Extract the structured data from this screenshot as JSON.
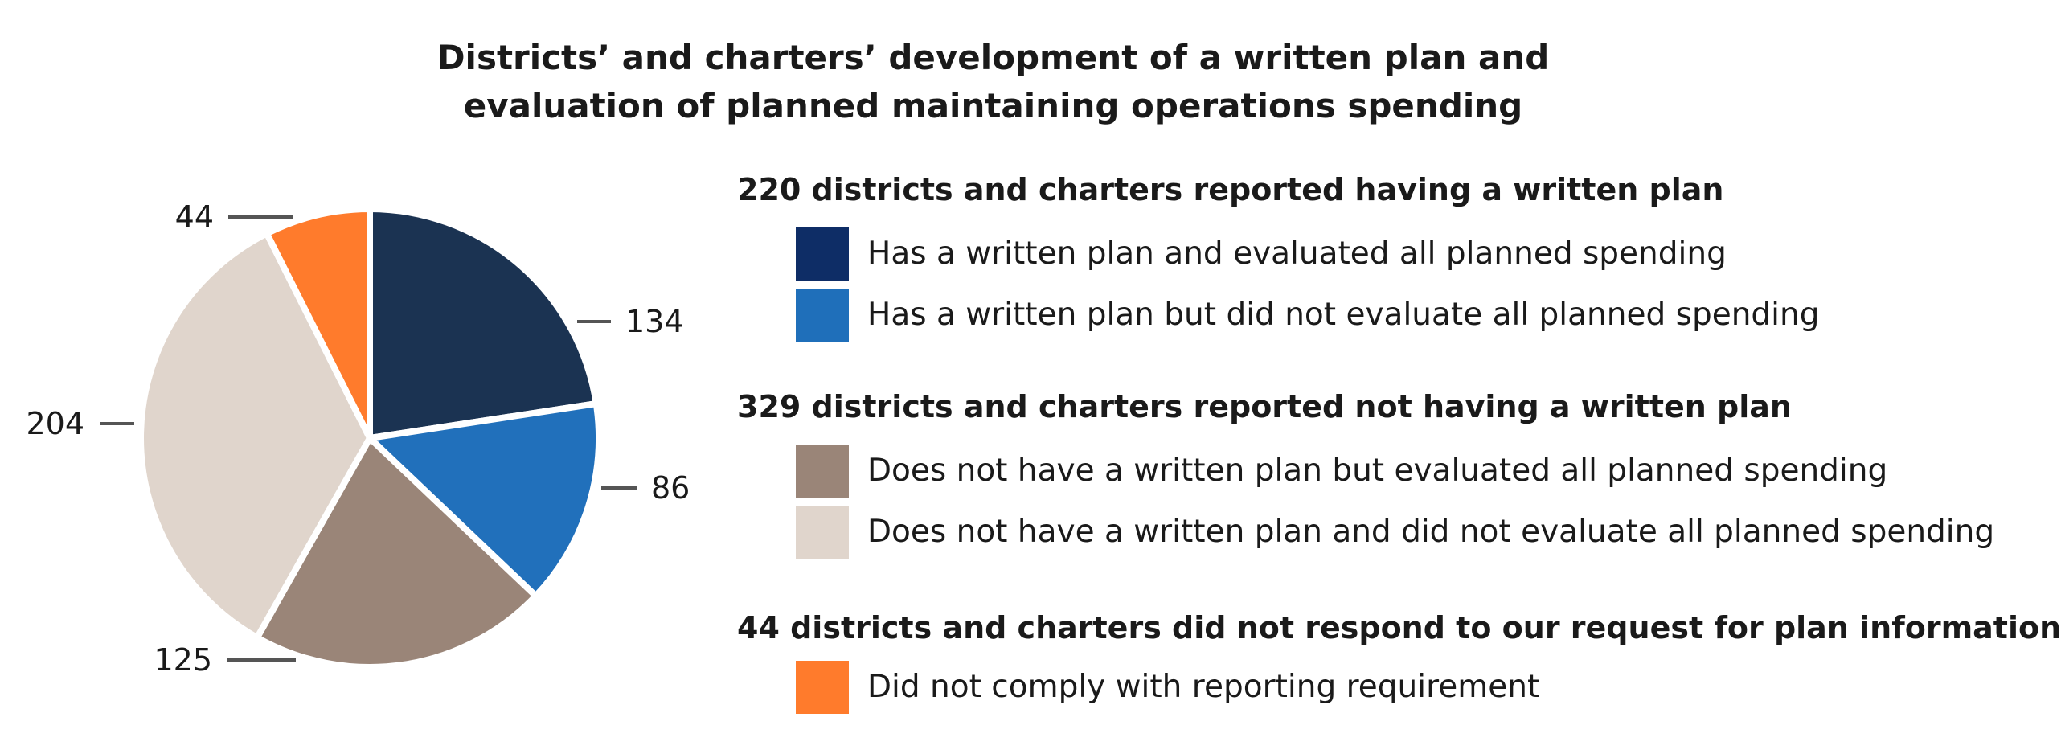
{
  "title": {
    "line1": "Districts’ and charters’ development of a written plan and",
    "line2": "evaluation of planned maintaining operations spending"
  },
  "legend_groups": [
    {
      "heading": "220 districts and charters reported having a written plan",
      "items": [
        {
          "label": "Has a written plan and evaluated all planned spending",
          "color": "#0e2d66"
        },
        {
          "label": "Has a written plan but did not evaluate all planned spending",
          "color": "#1f6fba"
        }
      ]
    },
    {
      "heading": "329 districts and charters reported not having a written plan",
      "items": [
        {
          "label": "Does not have a written plan but evaluated all planned spending",
          "color": "#9a8578"
        },
        {
          "label": "Does not have a written plan and did not evaluate all planned spending",
          "color": "#e0d5cc"
        }
      ]
    },
    {
      "heading": "44 districts and charters did not respond to our request for plan information",
      "items": [
        {
          "label": "Did not comply with reporting requirement",
          "color": "#ff7b2c"
        }
      ]
    }
  ],
  "chart_data": {
    "type": "pie",
    "title": "Districts’ and charters’ development of a written plan and evaluation of planned maintaining operations spending",
    "start": "12 o'clock",
    "direction": "clockwise",
    "slices": [
      {
        "label": "Has a written plan and evaluated all planned spending",
        "value": 134,
        "value_label": "134",
        "color": "#1b3352"
      },
      {
        "label": "Has a written plan but did not evaluate all planned spending",
        "value": 86,
        "value_label": "86",
        "color": "#2170bb"
      },
      {
        "label": "Does not have a written plan but evaluated all planned spending",
        "value": 125,
        "value_label": "125",
        "color": "#9a8578"
      },
      {
        "label": "Does not have a written plan and did not evaluate all planned spending",
        "value": 204,
        "value_label": "204",
        "color": "#e0d5cc"
      },
      {
        "label": "Did not comply with reporting requirement",
        "value": 44,
        "value_label": "44",
        "color": "#ff7b2c"
      }
    ]
  }
}
